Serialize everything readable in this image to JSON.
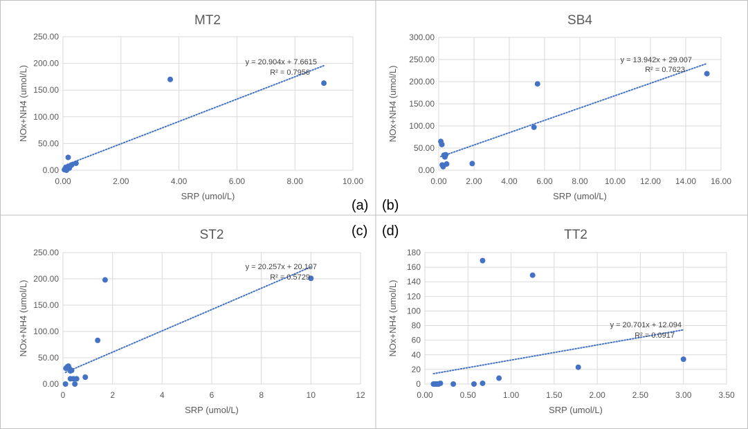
{
  "colors": {
    "marker": "#4472C4",
    "trendline": "#4472C4",
    "gridline": "#D9D9D9",
    "panel_border": "#BFBFBF",
    "title_text": "#595959",
    "tick_text": "#595959",
    "annotation_text": "#404040"
  },
  "panel_labels": [
    "(a)",
    "(b)",
    "(c)",
    "(d)"
  ],
  "chart_data": [
    {
      "type": "scatter",
      "title": "MT2",
      "xlabel": "SRP (umol/L)",
      "ylabel": "NOx+NH4 (umol/L)",
      "xlim": [
        0,
        10
      ],
      "ylim": [
        0,
        250
      ],
      "xticks": [
        0,
        2,
        4,
        6,
        8,
        10
      ],
      "yticks": [
        0,
        50,
        100,
        150,
        200,
        250
      ],
      "xtick_labels": [
        "0.00",
        "2.00",
        "4.00",
        "6.00",
        "8.00",
        "10.00"
      ],
      "ytick_labels": [
        "0.00",
        "50.00",
        "100.00",
        "150.00",
        "200.00",
        "250.00"
      ],
      "grid": true,
      "points": [
        [
          0.05,
          1
        ],
        [
          0.08,
          3
        ],
        [
          0.1,
          5
        ],
        [
          0.12,
          0
        ],
        [
          0.15,
          2
        ],
        [
          0.18,
          24
        ],
        [
          0.2,
          6
        ],
        [
          0.22,
          4
        ],
        [
          0.25,
          8
        ],
        [
          0.3,
          10
        ],
        [
          0.45,
          13
        ],
        [
          3.7,
          170
        ],
        [
          9.0,
          163
        ]
      ],
      "trendline": {
        "slope": 20.904,
        "intercept": 7.6615,
        "x_range": [
          0.05,
          9.0
        ],
        "equation": "y = 20.904x + 7.6615",
        "r2": "R² = 0.7956"
      }
    },
    {
      "type": "scatter",
      "title": "SB4",
      "xlabel": "SRP (umol/L)",
      "ylabel": "NOx+NH4 (umol/L)",
      "xlim": [
        0,
        16
      ],
      "ylim": [
        0,
        300
      ],
      "xticks": [
        0,
        2,
        4,
        6,
        8,
        10,
        12,
        14,
        16
      ],
      "yticks": [
        0,
        50,
        100,
        150,
        200,
        250,
        300
      ],
      "xtick_labels": [
        "0.00",
        "2.00",
        "4.00",
        "6.00",
        "8.00",
        "10.00",
        "12.00",
        "14.00",
        "16.00"
      ],
      "ytick_labels": [
        "0.00",
        "50.00",
        "100.00",
        "150.00",
        "200.00",
        "250.00",
        "300.00"
      ],
      "grid": true,
      "points": [
        [
          0.12,
          65
        ],
        [
          0.18,
          58
        ],
        [
          0.2,
          12
        ],
        [
          0.25,
          8
        ],
        [
          0.3,
          34
        ],
        [
          0.35,
          30
        ],
        [
          0.4,
          35
        ],
        [
          0.45,
          14
        ],
        [
          1.9,
          15
        ],
        [
          5.4,
          97
        ],
        [
          5.6,
          195
        ],
        [
          15.2,
          218
        ]
      ],
      "trendline": {
        "slope": 13.942,
        "intercept": 29.007,
        "x_range": [
          0.12,
          15.2
        ],
        "equation": "y = 13.942x + 29.007",
        "r2": "R² = 0.7623"
      }
    },
    {
      "type": "scatter",
      "title": "ST2",
      "xlabel": "SRP (umol/L)",
      "ylabel": "NOx+NH4 (umol/L)",
      "xlim": [
        0,
        12
      ],
      "ylim": [
        0,
        250
      ],
      "xticks": [
        0,
        2,
        4,
        6,
        8,
        10,
        12
      ],
      "yticks": [
        0,
        50,
        100,
        150,
        200,
        250
      ],
      "xtick_labels": [
        "0",
        "2",
        "4",
        "6",
        "8",
        "10",
        "12"
      ],
      "ytick_labels": [
        "0.00",
        "50.00",
        "100.00",
        "150.00",
        "200.00",
        "250.00"
      ],
      "grid": true,
      "points": [
        [
          0.1,
          0
        ],
        [
          0.12,
          30
        ],
        [
          0.18,
          33
        ],
        [
          0.22,
          34
        ],
        [
          0.25,
          30
        ],
        [
          0.3,
          25
        ],
        [
          0.3,
          10
        ],
        [
          0.35,
          26
        ],
        [
          0.42,
          10
        ],
        [
          0.48,
          0
        ],
        [
          0.55,
          10
        ],
        [
          0.9,
          13
        ],
        [
          1.4,
          83
        ],
        [
          1.7,
          198
        ],
        [
          10.0,
          201
        ]
      ],
      "trendline": {
        "slope": 20.257,
        "intercept": 20.107,
        "x_range": [
          0.1,
          10.0
        ],
        "equation": "y = 20.257x + 20.107",
        "r2": "R² = 0.5729"
      }
    },
    {
      "type": "scatter",
      "title": "TT2",
      "xlabel": "SRP (umol/L)",
      "ylabel": "NOx+NH4 (umol/L)",
      "xlim": [
        0,
        3.5
      ],
      "ylim": [
        0,
        180
      ],
      "xticks": [
        0,
        0.5,
        1,
        1.5,
        2,
        2.5,
        3,
        3.5
      ],
      "yticks": [
        0,
        20,
        40,
        60,
        80,
        100,
        120,
        140,
        160,
        180
      ],
      "xtick_labels": [
        "0.00",
        "0.50",
        "1.00",
        "1.50",
        "2.00",
        "2.50",
        "3.00",
        "3.50"
      ],
      "ytick_labels": [
        "0",
        "20",
        "40",
        "60",
        "80",
        "100",
        "120",
        "140",
        "160",
        "180"
      ],
      "grid": true,
      "points": [
        [
          0.1,
          0
        ],
        [
          0.12,
          0
        ],
        [
          0.14,
          0
        ],
        [
          0.16,
          0
        ],
        [
          0.18,
          1
        ],
        [
          0.33,
          0
        ],
        [
          0.57,
          0
        ],
        [
          0.67,
          1
        ],
        [
          0.67,
          169
        ],
        [
          0.86,
          8
        ],
        [
          1.25,
          149
        ],
        [
          1.78,
          23
        ],
        [
          3.0,
          34
        ]
      ],
      "trendline": {
        "slope": 20.701,
        "intercept": 12.094,
        "x_range": [
          0.1,
          3.0
        ],
        "equation": "y = 20.701x + 12.094",
        "r2": "R² = 0.0917"
      }
    }
  ]
}
